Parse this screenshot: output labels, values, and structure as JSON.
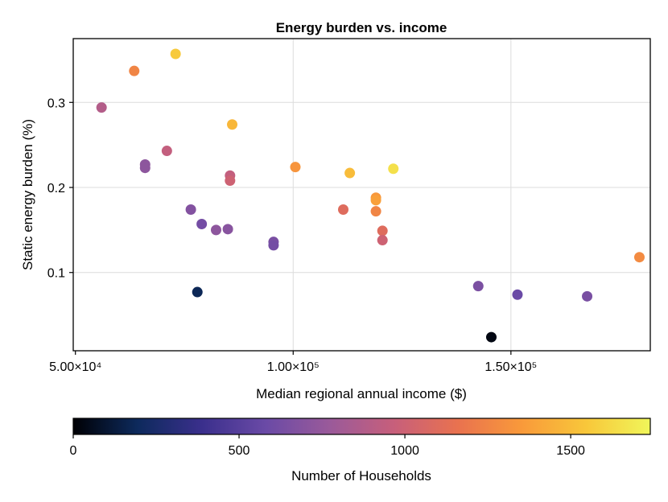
{
  "chart_data": {
    "type": "scatter",
    "title": "Energy burden vs. income",
    "xlabel": "Median regional annual income ($)",
    "ylabel": "Static energy burden (%)",
    "xlim": [
      49500,
      182000
    ],
    "ylim": [
      0.008,
      0.375
    ],
    "xticks": [
      50000,
      100000,
      150000
    ],
    "xtick_labels": [
      "5.00×10⁴",
      "1.00×10⁵",
      "1.50×10⁵"
    ],
    "yticks": [
      0.1,
      0.2,
      0.3
    ],
    "ytick_labels": [
      "0.1",
      "0.2",
      "0.3"
    ],
    "grid": true,
    "colorbar": {
      "label": "Number of Households",
      "range": [
        0,
        1740
      ],
      "ticks": [
        0,
        500,
        1000,
        1500
      ],
      "tick_labels": [
        "0",
        "500",
        "1000",
        "1500"
      ],
      "colormap": "plasma-like",
      "stops": [
        "#000004",
        "#0d2a5c",
        "#3a2f8c",
        "#6a4aa6",
        "#9a5a9a",
        "#c75f7b",
        "#e9724f",
        "#f99a3a",
        "#f8c73a",
        "#f0f65a"
      ]
    },
    "points": [
      {
        "x": 56000,
        "y": 0.294,
        "households": 880
      },
      {
        "x": 63500,
        "y": 0.337,
        "households": 1250
      },
      {
        "x": 66000,
        "y": 0.227,
        "households": 720
      },
      {
        "x": 66000,
        "y": 0.223,
        "households": 720
      },
      {
        "x": 71000,
        "y": 0.243,
        "households": 950
      },
      {
        "x": 73000,
        "y": 0.357,
        "households": 1560
      },
      {
        "x": 76500,
        "y": 0.174,
        "households": 680
      },
      {
        "x": 78000,
        "y": 0.077,
        "households": 180
      },
      {
        "x": 79000,
        "y": 0.157,
        "households": 620
      },
      {
        "x": 82300,
        "y": 0.15,
        "households": 720
      },
      {
        "x": 85000,
        "y": 0.151,
        "households": 700
      },
      {
        "x": 85500,
        "y": 0.214,
        "households": 950
      },
      {
        "x": 85500,
        "y": 0.208,
        "households": 1000
      },
      {
        "x": 86000,
        "y": 0.274,
        "households": 1480
      },
      {
        "x": 95500,
        "y": 0.136,
        "households": 640
      },
      {
        "x": 95500,
        "y": 0.132,
        "households": 620
      },
      {
        "x": 100500,
        "y": 0.224,
        "households": 1330
      },
      {
        "x": 111500,
        "y": 0.174,
        "households": 1100
      },
      {
        "x": 113000,
        "y": 0.217,
        "households": 1500
      },
      {
        "x": 119000,
        "y": 0.188,
        "households": 1340
      },
      {
        "x": 119000,
        "y": 0.185,
        "households": 1380
      },
      {
        "x": 119000,
        "y": 0.172,
        "households": 1250
      },
      {
        "x": 120500,
        "y": 0.149,
        "households": 1100
      },
      {
        "x": 120500,
        "y": 0.138,
        "households": 1000
      },
      {
        "x": 123000,
        "y": 0.222,
        "households": 1650
      },
      {
        "x": 142500,
        "y": 0.084,
        "households": 650
      },
      {
        "x": 145500,
        "y": 0.024,
        "households": 30
      },
      {
        "x": 151500,
        "y": 0.074,
        "households": 580
      },
      {
        "x": 167500,
        "y": 0.072,
        "households": 640
      },
      {
        "x": 179500,
        "y": 0.118,
        "households": 1280
      }
    ]
  }
}
